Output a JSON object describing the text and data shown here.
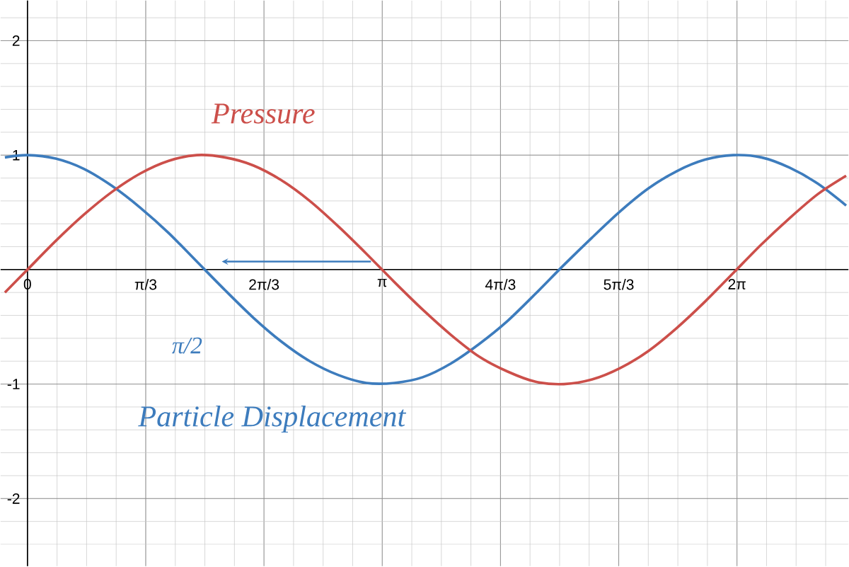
{
  "chart_data": {
    "type": "line",
    "xlim": [
      -0.238,
      7.27
    ],
    "ylim": [
      -2.59,
      2.35
    ],
    "xticks": [
      {
        "value": 0,
        "label": "0"
      },
      {
        "value": 1.0472,
        "label": "π/3"
      },
      {
        "value": 2.0944,
        "label": "2π/3"
      },
      {
        "value": 3.1416,
        "label": "π"
      },
      {
        "value": 4.1888,
        "label": "4π/3"
      },
      {
        "value": 5.236,
        "label": "5π/3"
      },
      {
        "value": 6.2832,
        "label": "2π"
      }
    ],
    "yticks": [
      -2,
      -1,
      1,
      2
    ],
    "grid": true,
    "x": [
      -0.2,
      0,
      0.25,
      0.5,
      0.75,
      1.0,
      1.25,
      1.5,
      1.75,
      2.0,
      2.25,
      2.5,
      2.75,
      3.0,
      3.25,
      3.5,
      3.75,
      4.0,
      4.25,
      4.5,
      4.75,
      5.0,
      5.25,
      5.5,
      5.75,
      6.0,
      6.25,
      6.5,
      6.75,
      7.0,
      7.25
    ],
    "series": [
      {
        "color": "#3d7cbd",
        "values": [
          0.98,
          1,
          0.97,
          0.88,
          0.73,
          0.54,
          0.32,
          0.07,
          -0.18,
          -0.42,
          -0.63,
          -0.8,
          -0.92,
          -0.99,
          -0.99,
          -0.94,
          -0.82,
          -0.65,
          -0.45,
          -0.21,
          0.04,
          0.28,
          0.51,
          0.71,
          0.86,
          0.96,
          1.0,
          0.98,
          0.89,
          0.75,
          0.56
        ]
      },
      {
        "color": "#cc4f4a",
        "values": [
          -0.2,
          0,
          0.25,
          0.48,
          0.68,
          0.84,
          0.95,
          1.0,
          0.98,
          0.91,
          0.78,
          0.6,
          0.38,
          0.14,
          -0.11,
          -0.35,
          -0.57,
          -0.76,
          -0.89,
          -0.98,
          -1.0,
          -0.96,
          -0.86,
          -0.71,
          -0.51,
          -0.28,
          -0.03,
          0.22,
          0.45,
          0.66,
          0.82
        ]
      }
    ],
    "annotations": [
      "Pressure",
      "Particle Displacement",
      "π/2"
    ]
  }
}
